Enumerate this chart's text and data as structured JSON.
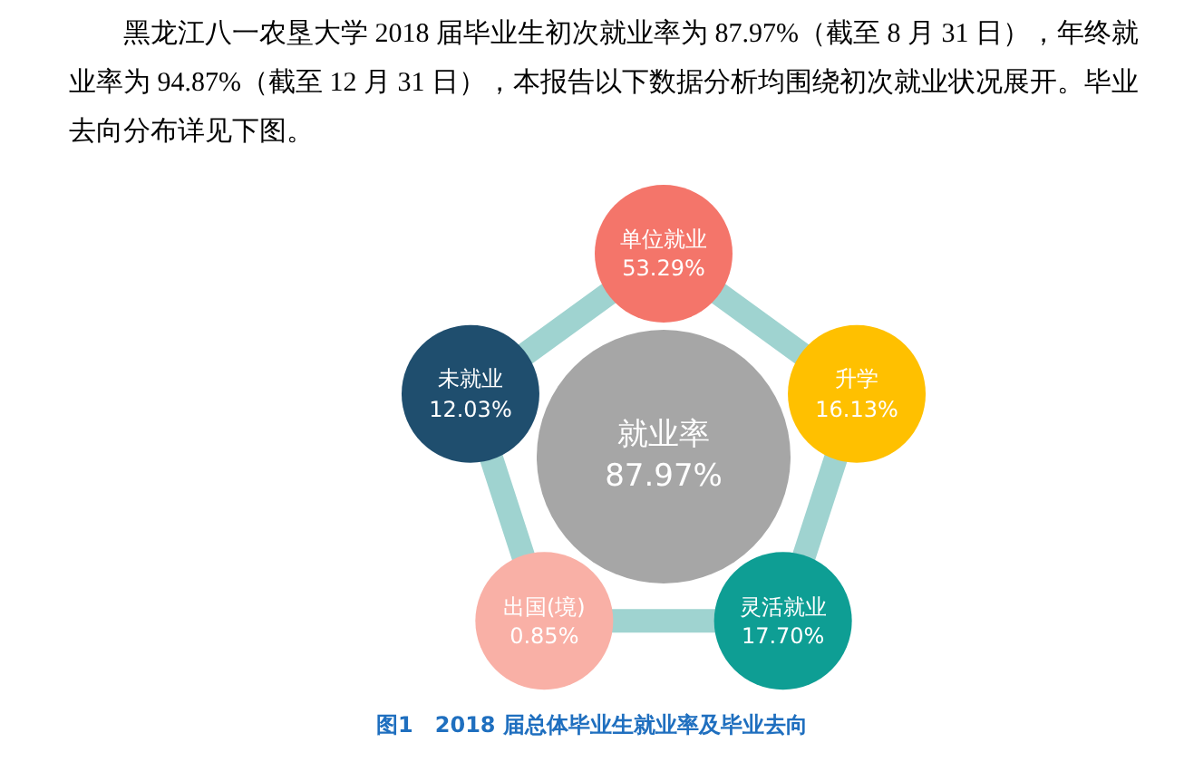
{
  "chart_data": {
    "type": "other",
    "title": "图1　2018 届总体毕业生就业率及毕业去向",
    "annotations": [
      "黑龙江八一农垦大学 2018 届毕业生初次就业率为 87.97%（截至 8 月 31 日），年终就业率为 94.87%（截至 12 月 31 日），本报告以下数据分析均围绕初次就业状况展开。毕业去向分布详见下图。"
    ],
    "categories": [
      "就业率",
      "单位就业",
      "升学",
      "灵活就业",
      "出国(境)",
      "未就业"
    ],
    "values": [
      87.97,
      53.29,
      16.13,
      17.7,
      0.85,
      12.03
    ],
    "value_labels": [
      "87.97%",
      "53.29%",
      "16.13%",
      "17.70%",
      "0.85%",
      "12.03%"
    ],
    "colors": [
      "#a6a6a6",
      "#f4756a",
      "#ffc000",
      "#0e9e94",
      "#f9b0a6",
      "#1f4e6e"
    ]
  }
}
